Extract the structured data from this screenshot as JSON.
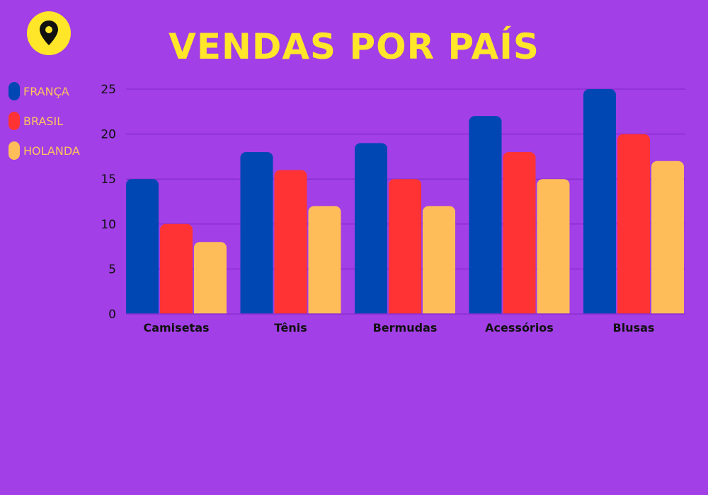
{
  "title": "VENDAS POR PAÍS",
  "icon": "map-pin-icon",
  "colors": {
    "background": "#a23fe6",
    "accent": "#ffe629",
    "legend_text": "#ffc65c",
    "grid": "#8a2fd0"
  },
  "chart_data": {
    "type": "bar",
    "title": "VENDAS POR PAÍS",
    "xlabel": "",
    "ylabel": "",
    "ylim": [
      0,
      25
    ],
    "yticks": [
      0,
      5,
      10,
      15,
      20,
      25
    ],
    "grid": true,
    "legend_position": "left",
    "categories": [
      "Camisetas",
      "Tênis",
      "Bermudas",
      "Acessórios",
      "Blusas"
    ],
    "series": [
      {
        "name": "FRANÇA",
        "color": "#0047b3",
        "values": [
          15,
          18,
          19,
          22,
          25
        ]
      },
      {
        "name": "BRASIL",
        "color": "#ff3333",
        "values": [
          10,
          16,
          15,
          18,
          20
        ]
      },
      {
        "name": "HOLANDA",
        "color": "#ffbd59",
        "values": [
          8,
          12,
          12,
          15,
          17
        ]
      }
    ]
  }
}
